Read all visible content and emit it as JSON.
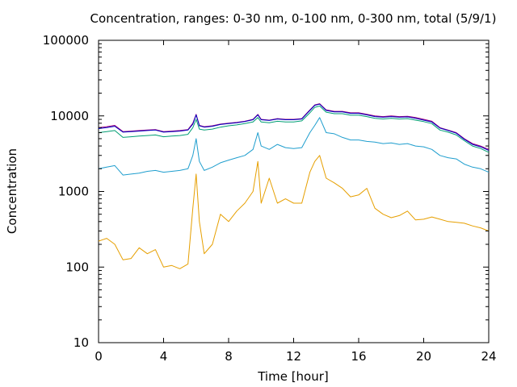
{
  "chart_data": {
    "type": "line",
    "title": "Concentration, ranges: 0-30 nm, 0-100 nm, 0-300 nm, total (5/9/1)",
    "xlabel": "Time [hour]",
    "ylabel": "Concentration",
    "xlim": [
      0,
      24
    ],
    "ylim": [
      10,
      100000
    ],
    "yscale": "log",
    "grid": false,
    "legend": "none",
    "x_ticks": [
      0,
      4,
      8,
      12,
      16,
      20,
      24
    ],
    "x_tick_labels": [
      "0",
      "4",
      "8",
      "12",
      "16",
      "20",
      "24"
    ],
    "y_ticks": [
      10,
      100,
      1000,
      10000,
      100000
    ],
    "y_tick_labels": [
      "10",
      "100",
      "1000",
      "10000",
      "100000"
    ],
    "x": [
      0,
      0.5,
      1,
      1.5,
      2,
      2.5,
      3,
      3.5,
      4,
      4.5,
      5,
      5.5,
      5.8,
      6,
      6.2,
      6.5,
      7,
      7.5,
      8,
      8.5,
      9,
      9.5,
      9.8,
      10,
      10.5,
      11,
      11.5,
      12,
      12.5,
      13,
      13.3,
      13.6,
      14,
      14.5,
      15,
      15.5,
      16,
      16.5,
      17,
      17.5,
      18,
      18.5,
      19,
      19.5,
      20,
      20.5,
      21,
      21.5,
      22,
      22.5,
      23,
      23.5,
      24
    ],
    "series": [
      {
        "color": "#a0007f",
        "values": [
          7000,
          7200,
          7500,
          6200,
          6300,
          6400,
          6500,
          6600,
          6200,
          6300,
          6400,
          6600,
          8000,
          10500,
          7500,
          7200,
          7400,
          7800,
          8000,
          8200,
          8500,
          9000,
          10500,
          9000,
          8800,
          9200,
          9000,
          9000,
          9200,
          12000,
          14000,
          14500,
          12000,
          11500,
          11500,
          11000,
          11000,
          10500,
          10000,
          9800,
          10000,
          9800,
          9900,
          9500,
          9000,
          8500,
          7000,
          6500,
          6000,
          5000,
          4300,
          4000,
          3600
        ]
      },
      {
        "color": "#0000c0",
        "values": [
          6800,
          7000,
          7300,
          6100,
          6200,
          6300,
          6400,
          6500,
          6100,
          6200,
          6300,
          6500,
          7800,
          10300,
          7400,
          7100,
          7300,
          7700,
          7900,
          8100,
          8400,
          8900,
          10300,
          8900,
          8700,
          9100,
          8900,
          8900,
          9100,
          11800,
          13800,
          14300,
          11800,
          11300,
          11300,
          10800,
          10800,
          10300,
          9800,
          9600,
          9800,
          9600,
          9700,
          9300,
          8800,
          8300,
          6900,
          6400,
          5900,
          4900,
          4200,
          3900,
          3500
        ]
      },
      {
        "color": "#009e73",
        "values": [
          6000,
          6200,
          6400,
          5200,
          5300,
          5400,
          5500,
          5600,
          5300,
          5400,
          5500,
          5700,
          7000,
          9000,
          6700,
          6500,
          6700,
          7100,
          7400,
          7600,
          7900,
          8300,
          9500,
          8300,
          8100,
          8500,
          8300,
          8300,
          8600,
          11000,
          13000,
          13500,
          11200,
          10700,
          10700,
          10200,
          10200,
          9800,
          9300,
          9100,
          9300,
          9100,
          9200,
          8800,
          8400,
          7900,
          6500,
          6100,
          5600,
          4700,
          4000,
          3700,
          3300
        ]
      },
      {
        "color": "#1f9ece",
        "values": [
          2000,
          2100,
          2200,
          1650,
          1700,
          1750,
          1850,
          1900,
          1800,
          1850,
          1900,
          2000,
          3000,
          5000,
          2500,
          1900,
          2100,
          2400,
          2600,
          2800,
          3000,
          3600,
          6000,
          4000,
          3600,
          4200,
          3800,
          3700,
          3800,
          6000,
          7500,
          9500,
          6000,
          5800,
          5200,
          4800,
          4800,
          4600,
          4500,
          4300,
          4400,
          4200,
          4300,
          4000,
          3900,
          3600,
          3000,
          2800,
          2700,
          2300,
          2100,
          2000,
          1800
        ]
      },
      {
        "color": "#e69f00",
        "values": [
          220,
          240,
          200,
          125,
          130,
          180,
          150,
          170,
          100,
          105,
          95,
          110,
          600,
          1700,
          400,
          150,
          200,
          500,
          400,
          550,
          700,
          1000,
          2500,
          700,
          1500,
          700,
          800,
          700,
          700,
          1800,
          2500,
          3000,
          1500,
          1300,
          1100,
          850,
          900,
          1100,
          600,
          500,
          450,
          480,
          550,
          420,
          430,
          460,
          430,
          400,
          390,
          380,
          350,
          330,
          300
        ]
      }
    ]
  }
}
